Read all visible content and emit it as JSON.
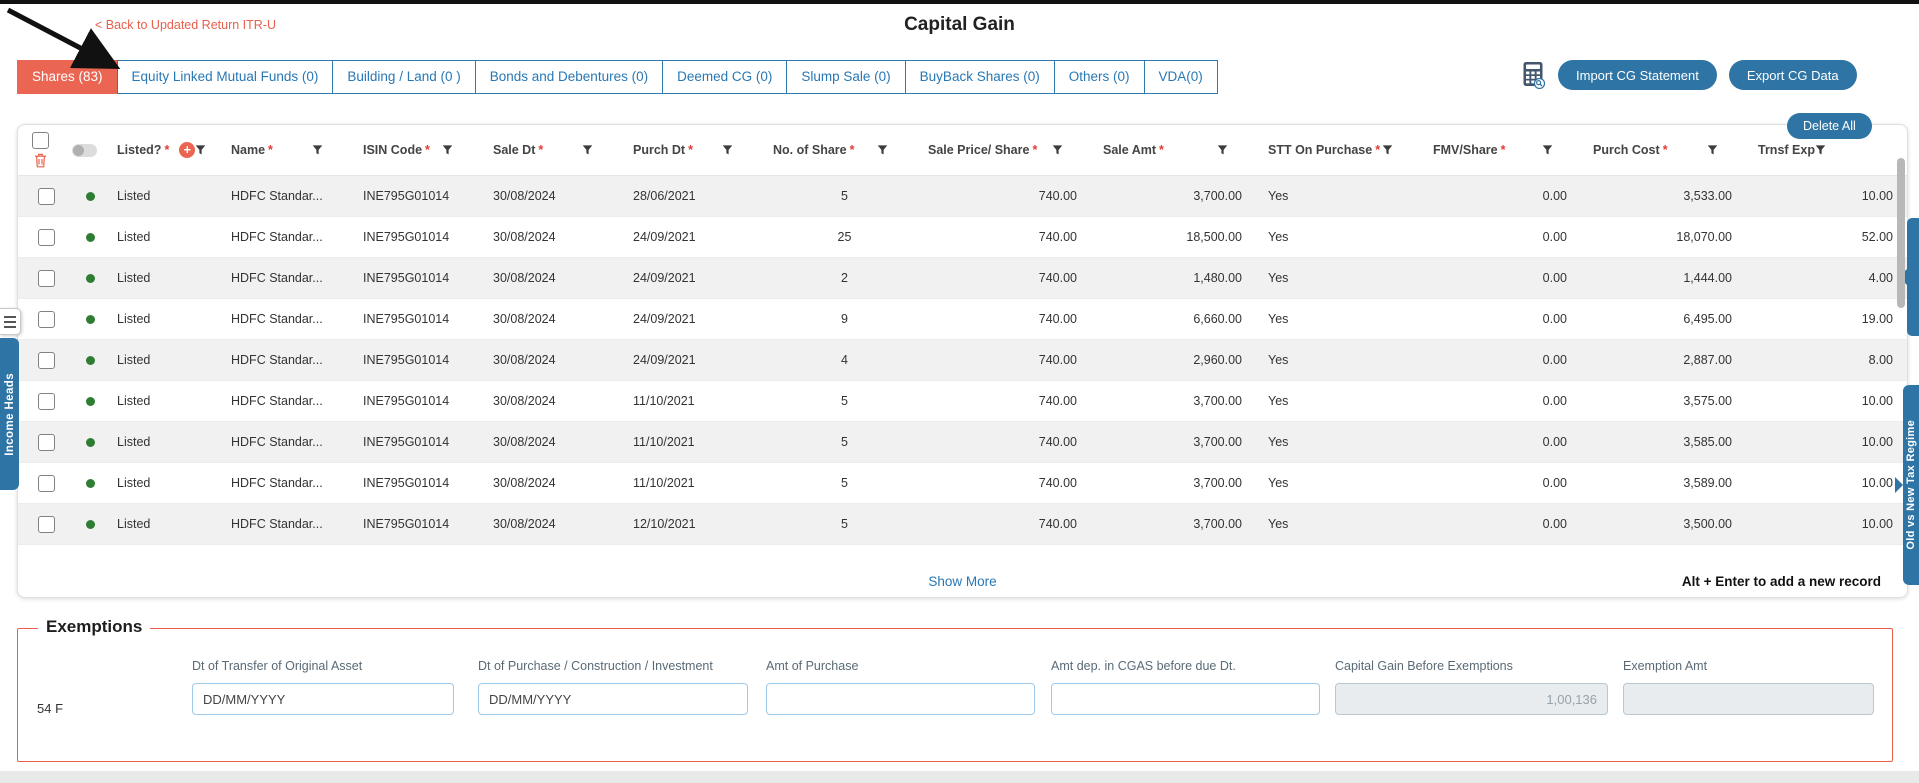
{
  "header": {
    "back_link": "< Back to Updated Return ITR-U",
    "title": "Capital Gain"
  },
  "tabs": [
    {
      "label": "Shares (83)",
      "active": true
    },
    {
      "label": "Equity Linked Mutual Funds (0)",
      "active": false
    },
    {
      "label": "Building / Land (0 )",
      "active": false
    },
    {
      "label": "Bonds and Debentures (0)",
      "active": false
    },
    {
      "label": "Deemed CG (0)",
      "active": false
    },
    {
      "label": "Slump Sale (0)",
      "active": false
    },
    {
      "label": "BuyBack Shares (0)",
      "active": false
    },
    {
      "label": "Others (0)",
      "active": false
    },
    {
      "label": "VDA(0)",
      "active": false
    }
  ],
  "toolbar": {
    "calculator_icon": "calculator-with-magnifier-icon",
    "import": "Import CG Statement",
    "export": "Export CG Data",
    "delete_all": "Delete All"
  },
  "table": {
    "columns": [
      {
        "key": "listed",
        "label": "Listed?",
        "required": true,
        "align": "left"
      },
      {
        "key": "name",
        "label": "Name",
        "required": true,
        "align": "left"
      },
      {
        "key": "isin",
        "label": "ISIN Code",
        "required": true,
        "align": "left"
      },
      {
        "key": "sale_dt",
        "label": "Sale Dt",
        "required": true,
        "align": "left"
      },
      {
        "key": "purch_dt",
        "label": "Purch Dt",
        "required": true,
        "align": "left"
      },
      {
        "key": "shares",
        "label": "No. of Share",
        "required": true,
        "align": "center"
      },
      {
        "key": "sale_price",
        "label": "Sale Price/ Share",
        "required": true,
        "align": "right"
      },
      {
        "key": "sale_amt",
        "label": "Sale Amt",
        "required": true,
        "align": "right"
      },
      {
        "key": "stt",
        "label": "STT On Purchase",
        "required": true,
        "align": "left"
      },
      {
        "key": "fmv",
        "label": "FMV/Share",
        "required": true,
        "align": "right"
      },
      {
        "key": "purch_cost",
        "label": "Purch Cost",
        "required": true,
        "align": "right"
      },
      {
        "key": "trnsf_exp",
        "label": "Trnsf Exp",
        "required": false,
        "align": "right"
      }
    ],
    "rows": [
      {
        "listed": "Listed",
        "name": "HDFC Standar...",
        "isin": "INE795G01014",
        "sale_dt": "30/08/2024",
        "purch_dt": "28/06/2021",
        "shares": "5",
        "sale_price": "740.00",
        "sale_amt": "3,700.00",
        "stt": "Yes",
        "fmv": "0.00",
        "purch_cost": "3,533.00",
        "trnsf_exp": "10.00"
      },
      {
        "listed": "Listed",
        "name": "HDFC Standar...",
        "isin": "INE795G01014",
        "sale_dt": "30/08/2024",
        "purch_dt": "24/09/2021",
        "shares": "25",
        "sale_price": "740.00",
        "sale_amt": "18,500.00",
        "stt": "Yes",
        "fmv": "0.00",
        "purch_cost": "18,070.00",
        "trnsf_exp": "52.00"
      },
      {
        "listed": "Listed",
        "name": "HDFC Standar...",
        "isin": "INE795G01014",
        "sale_dt": "30/08/2024",
        "purch_dt": "24/09/2021",
        "shares": "2",
        "sale_price": "740.00",
        "sale_amt": "1,480.00",
        "stt": "Yes",
        "fmv": "0.00",
        "purch_cost": "1,444.00",
        "trnsf_exp": "4.00"
      },
      {
        "listed": "Listed",
        "name": "HDFC Standar...",
        "isin": "INE795G01014",
        "sale_dt": "30/08/2024",
        "purch_dt": "24/09/2021",
        "shares": "9",
        "sale_price": "740.00",
        "sale_amt": "6,660.00",
        "stt": "Yes",
        "fmv": "0.00",
        "purch_cost": "6,495.00",
        "trnsf_exp": "19.00"
      },
      {
        "listed": "Listed",
        "name": "HDFC Standar...",
        "isin": "INE795G01014",
        "sale_dt": "30/08/2024",
        "purch_dt": "24/09/2021",
        "shares": "4",
        "sale_price": "740.00",
        "sale_amt": "2,960.00",
        "stt": "Yes",
        "fmv": "0.00",
        "purch_cost": "2,887.00",
        "trnsf_exp": "8.00"
      },
      {
        "listed": "Listed",
        "name": "HDFC Standar...",
        "isin": "INE795G01014",
        "sale_dt": "30/08/2024",
        "purch_dt": "11/10/2021",
        "shares": "5",
        "sale_price": "740.00",
        "sale_amt": "3,700.00",
        "stt": "Yes",
        "fmv": "0.00",
        "purch_cost": "3,575.00",
        "trnsf_exp": "10.00"
      },
      {
        "listed": "Listed",
        "name": "HDFC Standar...",
        "isin": "INE795G01014",
        "sale_dt": "30/08/2024",
        "purch_dt": "11/10/2021",
        "shares": "5",
        "sale_price": "740.00",
        "sale_amt": "3,700.00",
        "stt": "Yes",
        "fmv": "0.00",
        "purch_cost": "3,585.00",
        "trnsf_exp": "10.00"
      },
      {
        "listed": "Listed",
        "name": "HDFC Standar...",
        "isin": "INE795G01014",
        "sale_dt": "30/08/2024",
        "purch_dt": "11/10/2021",
        "shares": "5",
        "sale_price": "740.00",
        "sale_amt": "3,700.00",
        "stt": "Yes",
        "fmv": "0.00",
        "purch_cost": "3,589.00",
        "trnsf_exp": "10.00"
      },
      {
        "listed": "Listed",
        "name": "HDFC Standar...",
        "isin": "INE795G01014",
        "sale_dt": "30/08/2024",
        "purch_dt": "12/10/2021",
        "shares": "5",
        "sale_price": "740.00",
        "sale_amt": "3,700.00",
        "stt": "Yes",
        "fmv": "0.00",
        "purch_cost": "3,500.00",
        "trnsf_exp": "10.00"
      }
    ],
    "show_more": "Show More",
    "add_record_hint": "Alt + Enter to add a new record"
  },
  "exemptions": {
    "legend": "Exemptions",
    "code": "54 F",
    "fields": [
      {
        "label": "Dt of Transfer of Original Asset",
        "placeholder": "DD/MM/YYYY",
        "value": "",
        "disabled": false
      },
      {
        "label": "Dt of Purchase / Construction / Investment",
        "placeholder": "DD/MM/YYYY",
        "value": "",
        "disabled": false
      },
      {
        "label": "Amt of Purchase",
        "placeholder": "",
        "value": "",
        "disabled": false
      },
      {
        "label": "Amt dep. in CGAS before due Dt.",
        "placeholder": "",
        "value": "",
        "disabled": false
      },
      {
        "label": "Capital Gain Before Exemptions",
        "placeholder": "",
        "value": "1,00,136",
        "disabled": true
      },
      {
        "label": "Exemption Amt",
        "placeholder": "",
        "value": "",
        "disabled": true
      }
    ]
  },
  "side_tabs": {
    "left": "Income Heads",
    "right": "Old vs New Tax Regime"
  },
  "colors": {
    "accent_blue": "#2878b5",
    "button_blue": "#2e74a5",
    "tab_active": "#ea6652",
    "alert_red": "#e8604c",
    "listed_green": "#2e7d32"
  }
}
